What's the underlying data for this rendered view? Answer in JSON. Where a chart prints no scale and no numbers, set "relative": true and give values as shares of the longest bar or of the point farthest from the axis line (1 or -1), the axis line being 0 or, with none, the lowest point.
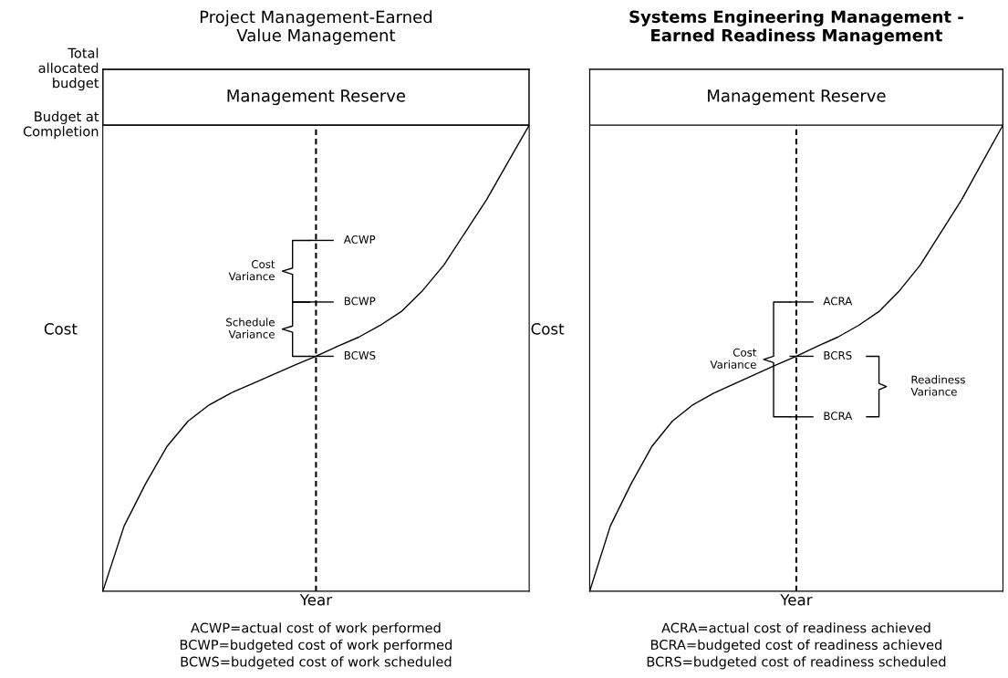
{
  "chart_data": [
    {
      "type": "line",
      "relative": true,
      "title": "Project Management-Earned\nValue Management",
      "xlabel": "Year",
      "ylabel": "Cost",
      "tick_labels": false,
      "categories": [
        null,
        null,
        null,
        null,
        null,
        null,
        null,
        null,
        null,
        null,
        null,
        null,
        null,
        null,
        null,
        null,
        null,
        null,
        null,
        null,
        null
      ],
      "series": [
        {
          "color": "#000000",
          "values": [
            0,
            0.14,
            0.23,
            0.31,
            0.365,
            0.4,
            0.425,
            0.445,
            0.465,
            0.485,
            0.504,
            0.525,
            0.545,
            0.57,
            0.6,
            0.645,
            0.7,
            0.77,
            0.84,
            0.92,
            1.0
          ]
        }
      ],
      "ref_lines": [
        {
          "axis": "y",
          "value": 1.0,
          "label": "Budget at\nCompletion",
          "color": "#000000"
        },
        {
          "axis": "y",
          "value": 1.12,
          "label": "Total\nallocated\nbudget",
          "color": "#000000"
        }
      ],
      "bands": [
        {
          "axis": "y",
          "from": 1.0,
          "to": 1.12,
          "label": "Management Reserve",
          "color": "#ffffff"
        }
      ],
      "annotations": [
        "ACWP",
        "BCWP",
        "BCWS",
        "Cost\nVariance",
        "Schedule\nVariance",
        "ACWP=actual cost of work performed\nBCWP=budgeted cost of work performed\nBCWS=budgeted cost of work scheduled"
      ]
    },
    {
      "type": "line",
      "relative": true,
      "title": "Systems Engineering Management -\nEarned Readiness Management",
      "xlabel": "Year",
      "ylabel": "Cost",
      "tick_labels": false,
      "categories": [
        null,
        null,
        null,
        null,
        null,
        null,
        null,
        null,
        null,
        null,
        null,
        null,
        null,
        null,
        null,
        null,
        null,
        null,
        null,
        null,
        null
      ],
      "series": [
        {
          "color": "#000000",
          "values": [
            0,
            0.14,
            0.23,
            0.31,
            0.365,
            0.4,
            0.425,
            0.445,
            0.465,
            0.485,
            0.504,
            0.525,
            0.545,
            0.57,
            0.6,
            0.645,
            0.7,
            0.77,
            0.84,
            0.92,
            1.0
          ]
        }
      ],
      "bands": [
        {
          "axis": "y",
          "from": 1.0,
          "to": 1.12,
          "label": "Management Reserve",
          "color": "#ffffff"
        }
      ],
      "annotations": [
        "ACRA",
        "BCRS",
        "BCRA",
        "Cost\nVariance",
        "Readiness\nVariance",
        "ACRA=actual cost of readiness achieved\nBCRA=budgeted cost of readiness achieved\nBCRS=budgeted cost of readiness scheduled"
      ]
    }
  ]
}
